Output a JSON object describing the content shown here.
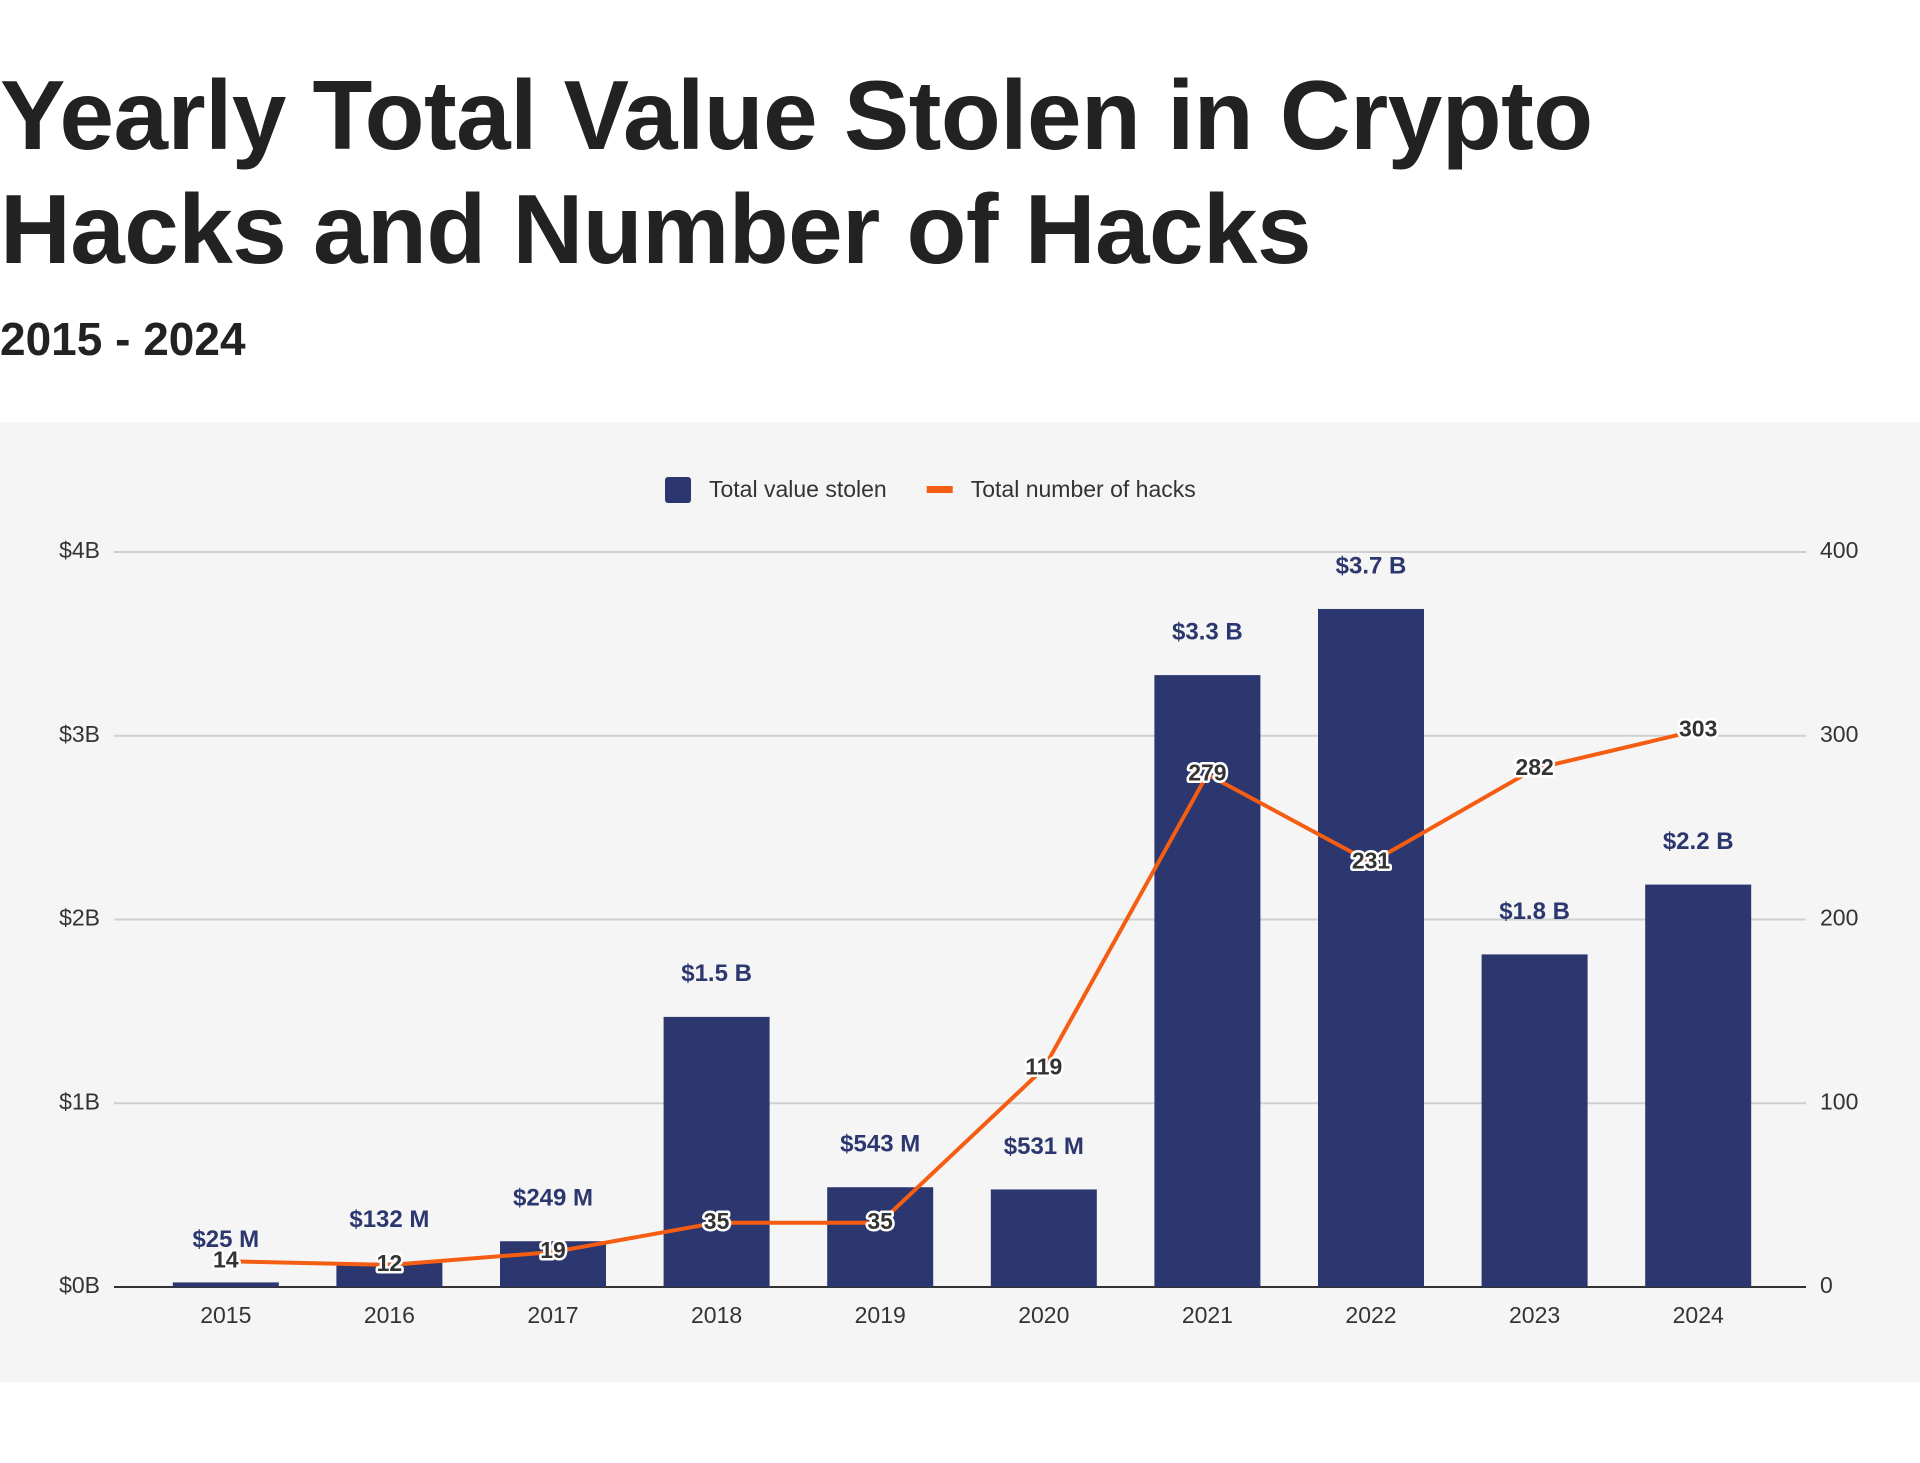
{
  "header": {
    "title": "Yearly Total Value Stolen in Crypto Hacks and Number of Hacks",
    "subtitle": "2015 - 2024"
  },
  "chart_data": {
    "type": "bar-line",
    "categories": [
      "2015",
      "2016",
      "2017",
      "2018",
      "2019",
      "2020",
      "2021",
      "2022",
      "2023",
      "2024"
    ],
    "series": [
      {
        "name": "Total value stolen",
        "type": "bar",
        "color": "#2b376e",
        "values": [
          0.025,
          0.132,
          0.249,
          1.47,
          0.543,
          0.531,
          3.33,
          3.69,
          1.81,
          2.19
        ],
        "value_labels": [
          "$25  M",
          "$132  M",
          "$249  M",
          "$1.5 B",
          "$543  M",
          "$531  M",
          "$3.3 B",
          "$3.7 B",
          "$1.8 B",
          "$2.2 B"
        ]
      },
      {
        "name": "Total number of hacks",
        "type": "line",
        "axis": "y2",
        "color": "#f45d12",
        "values": [
          14,
          12,
          19,
          35,
          35,
          119,
          279,
          231,
          282,
          303
        ]
      }
    ],
    "ylim": [
      0,
      4
    ],
    "yticks": [
      {
        "value": 0,
        "label": "$0B"
      },
      {
        "value": 1,
        "label": "$1B"
      },
      {
        "value": 2,
        "label": "$2B"
      },
      {
        "value": 3,
        "label": "$3B"
      },
      {
        "value": 4,
        "label": "$4B"
      }
    ],
    "y2lim": [
      0,
      400
    ],
    "y2ticks": [
      0,
      100,
      200,
      300,
      400
    ],
    "grid": true,
    "legend": "top"
  }
}
